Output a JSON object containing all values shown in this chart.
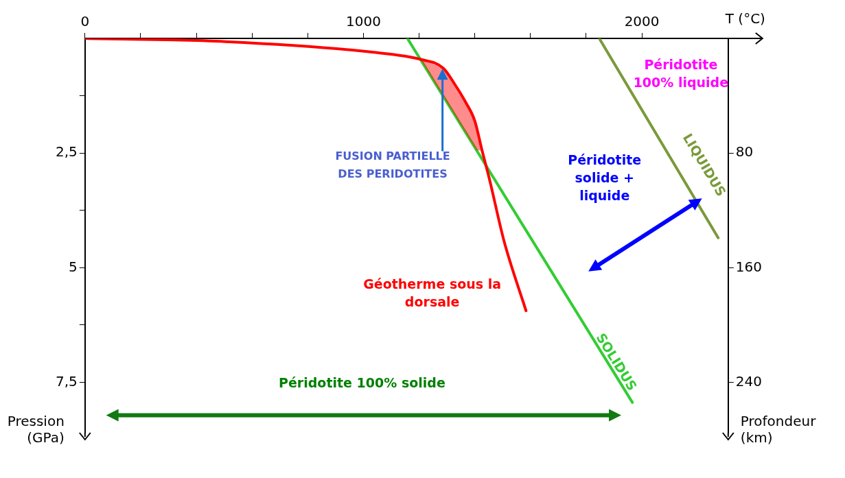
{
  "chart_data": {
    "type": "line",
    "xlabel": "T (°C)",
    "ylabel": "Pression (GPa)",
    "y2label": "Profondeur (km)",
    "xlim": [
      0,
      2310
    ],
    "xticks": [
      0,
      {
        "value": 200,
        "label": null
      },
      {
        "value": 400,
        "label": null
      },
      {
        "value": 600,
        "label": null
      },
      {
        "value": 800,
        "label": null
      },
      1000,
      {
        "value": 1200,
        "label": null
      },
      {
        "value": 1400,
        "label": null
      },
      {
        "value": 1600,
        "label": null
      },
      {
        "value": 1800,
        "label": null
      },
      2000
    ],
    "ylim": [
      8.6,
      0
    ],
    "yticks": [
      {
        "value": 1.25,
        "label": null
      },
      {
        "value": 2.5,
        "label": "2,5"
      },
      {
        "value": 3.75,
        "label": null
      },
      5,
      {
        "value": 6.25,
        "label": null
      },
      {
        "value": 7.5,
        "label": "7,5"
      }
    ],
    "y2lim": [
      275.2,
      0
    ],
    "y2ticks": [
      80,
      160,
      240
    ],
    "grid": false,
    "legend": false,
    "marker": "none",
    "line_style": "solid",
    "series": [
      {
        "name": "Géotherme sous la dorsale",
        "color": "#ff0000",
        "x": [
          0,
          505,
          1032,
          1208,
          1287,
          1329,
          1366,
          1400,
          1426,
          1453,
          1505,
          1584
        ],
        "values": [
          0,
          0.07,
          0.3,
          0.46,
          0.65,
          1.01,
          1.38,
          1.8,
          2.44,
          3.08,
          4.42,
          5.94
        ]
      },
      {
        "name": "SOLIDUS",
        "color": "#33cc33",
        "x": [
          1158,
          1966
        ],
        "values": [
          0,
          7.94
        ]
      },
      {
        "name": "LIQUIDUS",
        "color": "#7a9a3a",
        "x": [
          1847,
          2274
        ],
        "values": [
          0,
          4.35
        ]
      }
    ],
    "annotations": [
      "Péridotite 100% liquide",
      "Péridotite solide + liquide",
      "FUSION PARTIELLE DES PERIDOTITES",
      "Péridotite 100% solide"
    ]
  }
}
